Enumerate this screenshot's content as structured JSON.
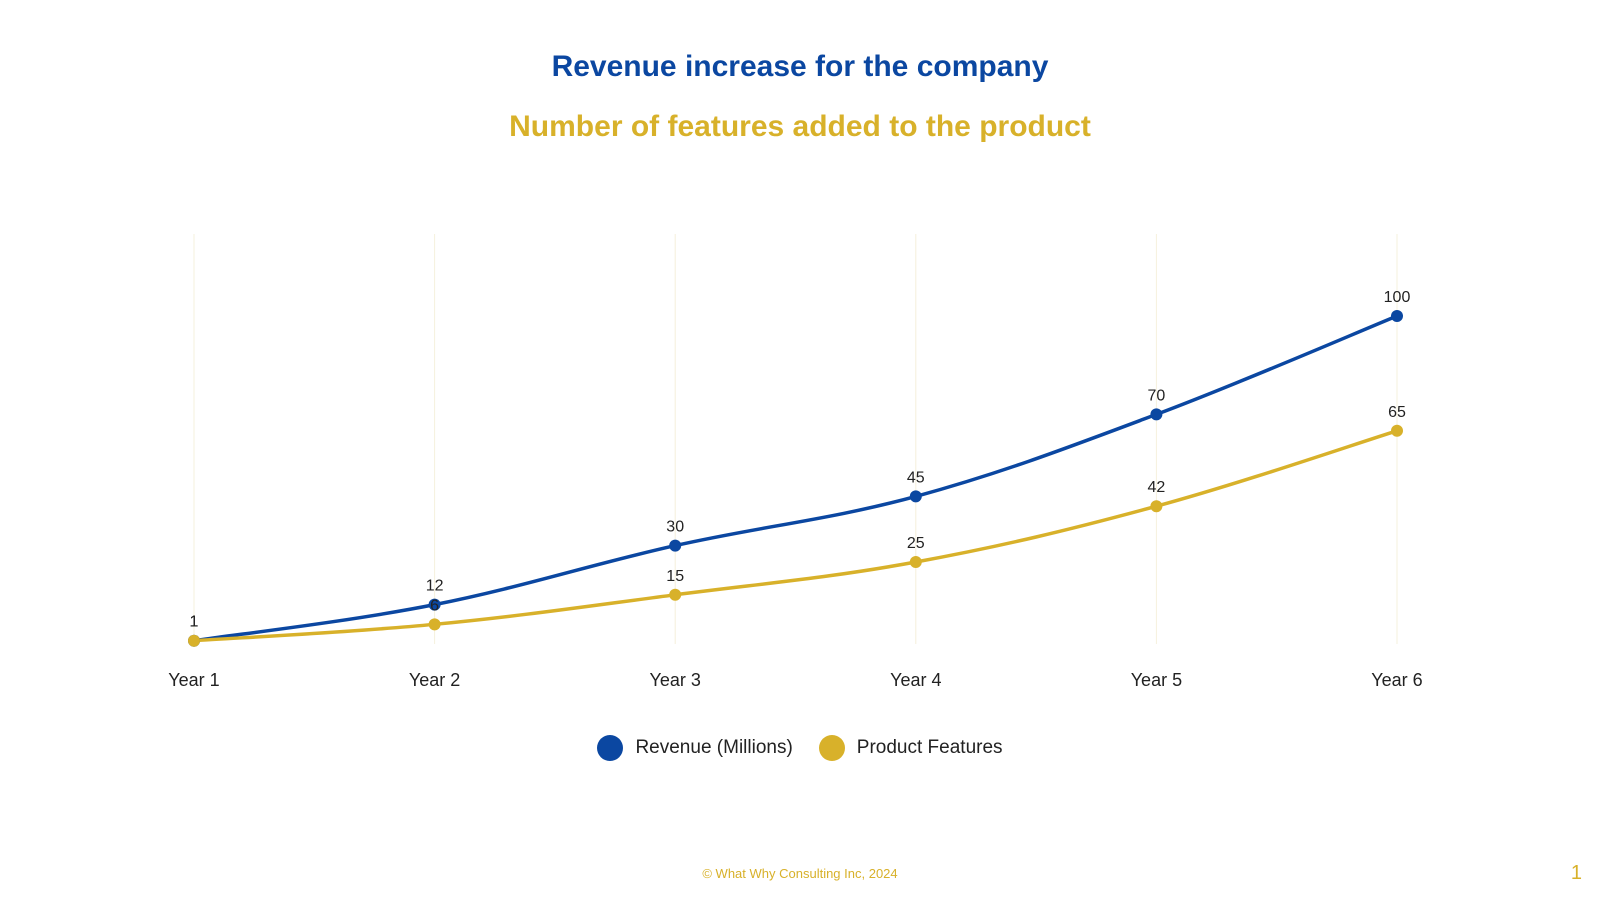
{
  "chart_data": {
    "type": "line",
    "title": "Revenue increase for the company",
    "subtitle": "Number of features added to the product",
    "categories": [
      "Year 1",
      "Year 2",
      "Year 3",
      "Year 4",
      "Year 5",
      "Year 6"
    ],
    "series": [
      {
        "name": "Revenue (Millions)",
        "color": "#0B47A1",
        "values": [
          1,
          12,
          30,
          45,
          70,
          100
        ]
      },
      {
        "name": "Product Features",
        "color": "#D8B12A",
        "values": [
          1,
          6,
          15,
          25,
          42,
          65
        ]
      }
    ],
    "ylim": [
      0,
      125
    ],
    "grid": "vertical",
    "legend": "bottom-center"
  },
  "footer": {
    "copyright": "© What Why Consulting Inc, 2024",
    "page_number": "1"
  }
}
